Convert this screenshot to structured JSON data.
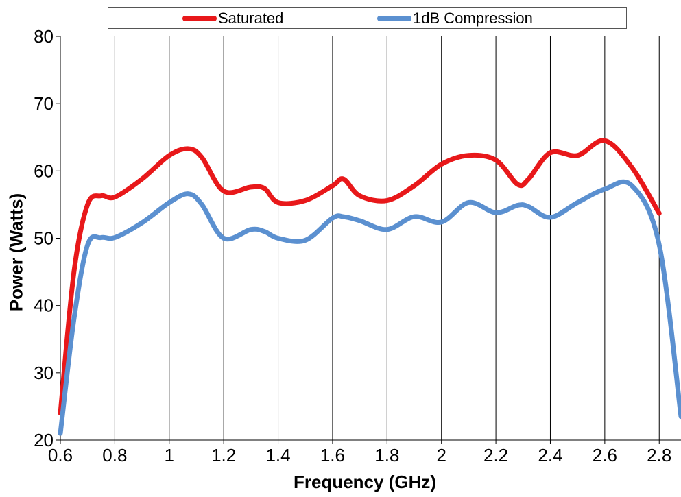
{
  "chart_data": {
    "type": "line",
    "title": "",
    "xlabel": "Frequency (GHz)",
    "ylabel": "Power (Watts)",
    "xlim": [
      0.6,
      2.88
    ],
    "ylim": [
      20,
      80
    ],
    "xticks": [
      "0.6",
      "0.8",
      "1",
      "1.2",
      "1.4",
      "1.6",
      "1.8",
      "2",
      "2.2",
      "2.4",
      "2.6",
      "2.8"
    ],
    "yticks": [
      "20",
      "30",
      "40",
      "50",
      "60",
      "70",
      "80"
    ],
    "grid": "vertical",
    "legend_position": "top",
    "series": [
      {
        "name": "Saturated",
        "color": "#e8181a",
        "x": [
          0.6,
          0.65,
          0.7,
          0.75,
          0.8,
          0.9,
          1.0,
          1.07,
          1.12,
          1.2,
          1.3,
          1.35,
          1.4,
          1.5,
          1.6,
          1.64,
          1.7,
          1.8,
          1.9,
          2.0,
          2.1,
          2.2,
          2.28,
          2.32,
          2.4,
          2.5,
          2.6,
          2.7,
          2.8
        ],
        "values": [
          24,
          45,
          55,
          56.3,
          56.1,
          58.8,
          62.3,
          63.3,
          62.0,
          57.0,
          57.6,
          57.4,
          55.3,
          55.6,
          57.8,
          58.8,
          56.3,
          55.6,
          57.8,
          61.0,
          62.3,
          61.6,
          58.0,
          58.8,
          62.7,
          62.3,
          64.5,
          60.5,
          53.7
        ]
      },
      {
        "name": "1dB Compression",
        "color": "#5b90d0",
        "x": [
          0.6,
          0.65,
          0.7,
          0.75,
          0.8,
          0.9,
          1.0,
          1.07,
          1.12,
          1.2,
          1.3,
          1.35,
          1.4,
          1.5,
          1.6,
          1.64,
          1.7,
          1.8,
          1.9,
          2.0,
          2.1,
          2.2,
          2.28,
          2.32,
          2.4,
          2.5,
          2.6,
          2.7,
          2.8,
          2.88
        ],
        "values": [
          21,
          38,
          49,
          50.1,
          50.1,
          52.3,
          55.3,
          56.6,
          55.0,
          50.0,
          51.3,
          51.0,
          50.0,
          49.7,
          53.0,
          53.2,
          52.6,
          51.3,
          53.2,
          52.4,
          55.3,
          53.8,
          54.9,
          54.7,
          53.1,
          55.3,
          57.3,
          57.8,
          49.0,
          23.5
        ]
      }
    ]
  }
}
